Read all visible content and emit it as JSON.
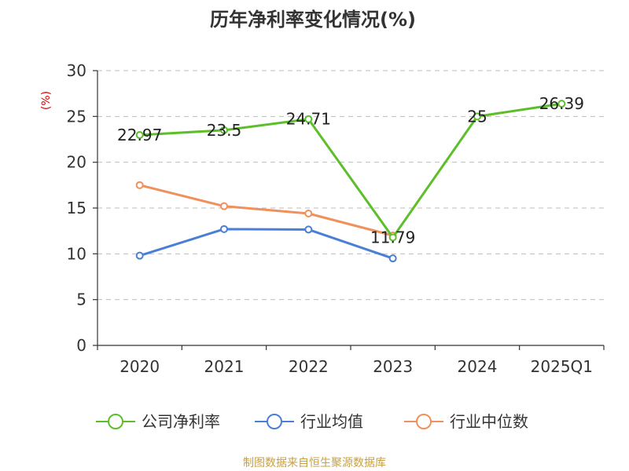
{
  "chart_data": {
    "type": "line",
    "title": "历年净利率变化情况(%)",
    "ylabel": "(%)",
    "xlabel": "",
    "categories": [
      "2020",
      "2021",
      "2022",
      "2023",
      "2024",
      "2025Q1"
    ],
    "ylim": [
      0,
      30
    ],
    "yticks": [
      0,
      5,
      10,
      15,
      20,
      25,
      30
    ],
    "grid": true,
    "legend_position": "bottom",
    "series": [
      {
        "name": "公司净利率",
        "color": "#5cbf2a",
        "values": [
          22.97,
          23.5,
          24.71,
          11.79,
          25,
          26.39
        ],
        "labels": [
          "22.97",
          "23.5",
          "24.71",
          "11.79",
          "25",
          "26.39"
        ]
      },
      {
        "name": "行业均值",
        "color": "#4a7fd6",
        "values": [
          9.8,
          12.7,
          12.65,
          9.5,
          null,
          null
        ]
      },
      {
        "name": "行业中位数",
        "color": "#f0905a",
        "values": [
          17.5,
          15.2,
          14.4,
          12.0,
          null,
          null
        ]
      }
    ]
  },
  "source_text": "制图数据来自恒生聚源数据库"
}
